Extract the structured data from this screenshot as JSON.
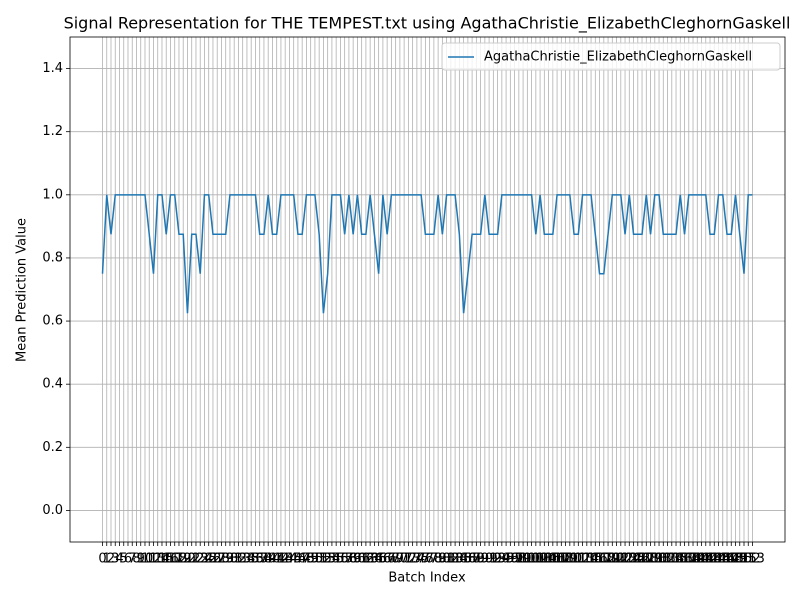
{
  "chart_data": {
    "type": "line",
    "title": "Signal Representation for THE TEMPEST.txt using AgathaChristie_ElizabethCleghornGaskell",
    "x_label": "Batch Index",
    "y_label": "Mean Prediction Value",
    "x": [
      0,
      1,
      2,
      3,
      4,
      5,
      6,
      7,
      8,
      9,
      10,
      11,
      12,
      13,
      14,
      15,
      16,
      17,
      18,
      19,
      20,
      21,
      22,
      23,
      24,
      25,
      26,
      27,
      28,
      29,
      30,
      31,
      32,
      33,
      34,
      35,
      36,
      37,
      38,
      39,
      40,
      41,
      42,
      43,
      44,
      45,
      46,
      47,
      48,
      49,
      50,
      51,
      52,
      53,
      54,
      55,
      56,
      57,
      58,
      59,
      60,
      61,
      62,
      63,
      64,
      65,
      66,
      67,
      68,
      69,
      70,
      71,
      72,
      73,
      74,
      75,
      76,
      77,
      78,
      79,
      80,
      81,
      82,
      83,
      84,
      85,
      86,
      87,
      88,
      89,
      90,
      91,
      92,
      93,
      94,
      95,
      96,
      97,
      98,
      99,
      100,
      101,
      102,
      103,
      104,
      105,
      106,
      107,
      108,
      109,
      110,
      111,
      112,
      113,
      114,
      115,
      116,
      117,
      118,
      119,
      120,
      121,
      122,
      123,
      124,
      125,
      126,
      127,
      128,
      129,
      130,
      131,
      132,
      133,
      134,
      135,
      136,
      137,
      138,
      139,
      140,
      141,
      142,
      143,
      144,
      145,
      146,
      147,
      148,
      149,
      150,
      151,
      152,
      153
    ],
    "series": [
      {
        "name": "AgathaChristie_ElizabethCleghornGaskell",
        "color": "#1f77b4",
        "values": [
          0.75,
          1,
          0.875,
          1,
          1,
          1,
          1,
          1,
          1,
          1,
          1,
          0.875,
          0.75,
          1,
          1,
          0.875,
          1,
          1,
          0.875,
          0.875,
          0.625,
          0.875,
          0.875,
          0.75,
          1,
          1,
          0.875,
          0.875,
          0.875,
          0.875,
          1,
          1,
          1,
          1,
          1,
          1,
          1,
          0.875,
          0.875,
          1,
          0.875,
          0.875,
          1,
          1,
          1,
          1,
          0.875,
          0.875,
          1,
          1,
          1,
          0.875,
          0.625,
          0.75,
          1,
          1,
          1,
          0.875,
          1,
          0.875,
          1,
          0.875,
          0.875,
          1,
          0.875,
          0.75,
          1,
          0.875,
          1,
          1,
          1,
          1,
          1,
          1,
          1,
          1,
          0.875,
          0.875,
          0.875,
          1,
          0.875,
          1,
          1,
          1,
          0.875,
          0.625,
          0.75,
          0.875,
          0.875,
          0.875,
          1,
          0.875,
          0.875,
          0.875,
          1,
          1,
          1,
          1,
          1,
          1,
          1,
          1,
          0.875,
          1,
          0.875,
          0.875,
          0.875,
          1,
          1,
          1,
          1,
          0.875,
          0.875,
          1,
          1,
          1,
          0.875,
          0.75,
          0.75,
          0.875,
          1,
          1,
          1,
          0.875,
          1,
          0.875,
          0.875,
          0.875,
          1,
          0.875,
          1,
          1,
          0.875,
          0.875,
          0.875,
          0.875,
          1,
          0.875,
          1,
          1,
          1,
          1,
          1,
          0.875,
          0.875,
          1,
          1,
          0.875,
          0.875,
          1,
          0.875,
          0.75,
          1,
          1
        ]
      }
    ],
    "xlim": [
      -7.65,
      160.65
    ],
    "xticks": [
      0,
      1,
      2,
      3,
      4,
      5,
      6,
      7,
      8,
      9,
      10,
      11,
      12,
      13,
      14,
      15,
      16,
      17,
      18,
      19,
      20,
      21,
      22,
      23,
      24,
      25,
      26,
      27,
      28,
      29,
      30,
      31,
      32,
      33,
      34,
      35,
      36,
      37,
      38,
      39,
      40,
      41,
      42,
      43,
      44,
      45,
      46,
      47,
      48,
      49,
      50,
      51,
      52,
      53,
      54,
      55,
      56,
      57,
      58,
      59,
      60,
      61,
      62,
      63,
      64,
      65,
      66,
      67,
      68,
      69,
      70,
      71,
      72,
      73,
      74,
      75,
      76,
      77,
      78,
      79,
      80,
      81,
      82,
      83,
      84,
      85,
      86,
      87,
      88,
      89,
      90,
      91,
      92,
      93,
      94,
      95,
      96,
      97,
      98,
      99,
      100,
      101,
      102,
      103,
      104,
      105,
      106,
      107,
      108,
      109,
      110,
      111,
      112,
      113,
      114,
      115,
      116,
      117,
      118,
      119,
      120,
      121,
      122,
      123,
      124,
      125,
      126,
      127,
      128,
      129,
      130,
      131,
      132,
      133,
      134,
      135,
      136,
      137,
      138,
      139,
      140,
      141,
      142,
      143,
      144,
      145,
      146,
      147,
      148,
      149,
      150,
      151,
      152,
      153
    ],
    "ylim": [
      -0.1,
      1.5
    ],
    "yticks": [
      {
        "value": 0,
        "label": "0.0"
      },
      {
        "value": 0.2,
        "label": "0.2"
      },
      {
        "value": 0.4,
        "label": "0.4"
      },
      {
        "value": 0.6,
        "label": "0.6"
      },
      {
        "value": 0.8,
        "label": "0.8"
      },
      {
        "value": 1,
        "label": "1.0"
      },
      {
        "value": 1.2,
        "label": "1.2"
      },
      {
        "value": 1.4,
        "label": "1.4"
      }
    ],
    "grid": true,
    "legend": "upper right"
  }
}
